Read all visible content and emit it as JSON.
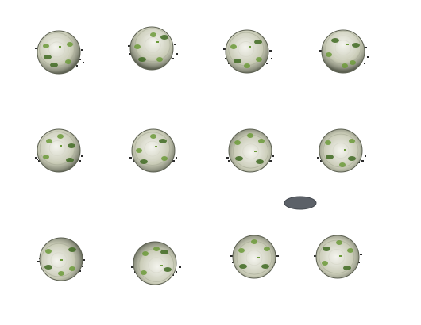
{
  "sprite_sheet": {
    "background": "#ffffff",
    "boulder_colors": {
      "light": "#f4f4ee",
      "mid": "#c9cbb6",
      "dark": "#8e9180",
      "edge": "#5d6152",
      "moss": "#6c9a3a",
      "moss_dark": "#3f6a22",
      "debris": "#2b2b2b"
    },
    "shadow_color": "#5c6168",
    "rows": [
      {
        "frames": [
          {
            "variant": "roll-1"
          },
          {
            "variant": "roll-2"
          },
          {
            "variant": "roll-3"
          },
          {
            "variant": "roll-4"
          }
        ]
      },
      {
        "frames": [
          {
            "variant": "roll-5"
          },
          {
            "variant": "roll-6"
          },
          {
            "variant": "roll-7"
          },
          {
            "variant": "roll-8"
          }
        ]
      },
      {
        "frames": [
          {
            "variant": "roll-9"
          },
          {
            "variant": "roll-10"
          },
          {
            "variant": "roll-11"
          },
          {
            "variant": "roll-12"
          }
        ]
      }
    ]
  }
}
